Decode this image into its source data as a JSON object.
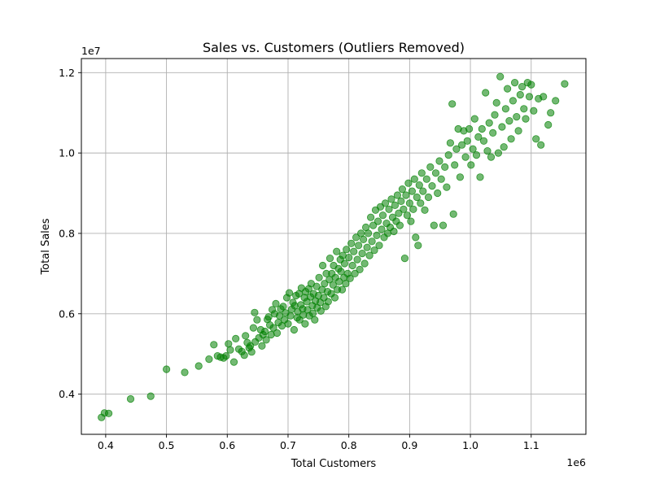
{
  "chart_data": {
    "type": "scatter",
    "title": "Sales vs. Customers (Outliers Removed)",
    "xlabel": "Total Customers",
    "ylabel": "Total Sales",
    "x_offset_label": "1e6",
    "y_offset_label": "1e7",
    "xlim": [
      0.36,
      1.19
    ],
    "ylim": [
      0.3,
      1.235
    ],
    "xticks": [
      0.4,
      0.5,
      0.6,
      0.7,
      0.8,
      0.9,
      1.0,
      1.1
    ],
    "xtick_labels": [
      "0.4",
      "0.5",
      "0.6",
      "0.7",
      "0.8",
      "0.9",
      "1.0",
      "1.1"
    ],
    "yticks": [
      0.4,
      0.6,
      0.8,
      1.0,
      1.2
    ],
    "ytick_labels": [
      "0.4",
      "0.6",
      "0.8",
      "1.0",
      "1.2"
    ],
    "grid": true,
    "marker_color": "#008000",
    "marker_alpha": 0.55,
    "series": [
      {
        "points": [
          [
            0.393,
            0.342
          ],
          [
            0.398,
            0.353
          ],
          [
            0.405,
            0.352
          ],
          [
            0.441,
            0.388
          ],
          [
            0.474,
            0.395
          ],
          [
            0.5,
            0.462
          ],
          [
            0.53,
            0.454
          ],
          [
            0.553,
            0.47
          ],
          [
            0.57,
            0.487
          ],
          [
            0.578,
            0.523
          ],
          [
            0.584,
            0.495
          ],
          [
            0.589,
            0.492
          ],
          [
            0.594,
            0.49
          ],
          [
            0.598,
            0.495
          ],
          [
            0.602,
            0.525
          ],
          [
            0.605,
            0.51
          ],
          [
            0.611,
            0.48
          ],
          [
            0.614,
            0.538
          ],
          [
            0.619,
            0.512
          ],
          [
            0.624,
            0.506
          ],
          [
            0.628,
            0.497
          ],
          [
            0.63,
            0.545
          ],
          [
            0.633,
            0.528
          ],
          [
            0.636,
            0.515
          ],
          [
            0.638,
            0.52
          ],
          [
            0.64,
            0.505
          ],
          [
            0.643,
            0.565
          ],
          [
            0.645,
            0.603
          ],
          [
            0.646,
            0.53
          ],
          [
            0.649,
            0.585
          ],
          [
            0.652,
            0.54
          ],
          [
            0.655,
            0.56
          ],
          [
            0.657,
            0.52
          ],
          [
            0.659,
            0.548
          ],
          [
            0.662,
            0.556
          ],
          [
            0.664,
            0.535
          ],
          [
            0.666,
            0.586
          ],
          [
            0.668,
            0.592
          ],
          [
            0.67,
            0.572
          ],
          [
            0.672,
            0.548
          ],
          [
            0.674,
            0.61
          ],
          [
            0.676,
            0.565
          ],
          [
            0.678,
            0.6
          ],
          [
            0.68,
            0.625
          ],
          [
            0.682,
            0.552
          ],
          [
            0.684,
            0.578
          ],
          [
            0.686,
            0.595
          ],
          [
            0.688,
            0.612
          ],
          [
            0.69,
            0.57
          ],
          [
            0.692,
            0.618
          ],
          [
            0.694,
            0.585
          ],
          [
            0.696,
            0.602
          ],
          [
            0.698,
            0.64
          ],
          [
            0.7,
            0.575
          ],
          [
            0.702,
            0.652
          ],
          [
            0.704,
            0.595
          ],
          [
            0.706,
            0.611
          ],
          [
            0.708,
            0.628
          ],
          [
            0.71,
            0.56
          ],
          [
            0.711,
            0.62
          ],
          [
            0.713,
            0.645
          ],
          [
            0.715,
            0.59
          ],
          [
            0.716,
            0.605
          ],
          [
            0.718,
            0.65
          ],
          [
            0.719,
            0.585
          ],
          [
            0.721,
            0.622
          ],
          [
            0.722,
            0.664
          ],
          [
            0.724,
            0.612
          ],
          [
            0.725,
            0.597
          ],
          [
            0.727,
            0.64
          ],
          [
            0.728,
            0.575
          ],
          [
            0.729,
            0.655
          ],
          [
            0.731,
            0.63
          ],
          [
            0.732,
            0.61
          ],
          [
            0.734,
            0.662
          ],
          [
            0.735,
            0.595
          ],
          [
            0.737,
            0.642
          ],
          [
            0.738,
            0.675
          ],
          [
            0.74,
            0.62
          ],
          [
            0.741,
            0.601
          ],
          [
            0.742,
            0.65
          ],
          [
            0.744,
            0.585
          ],
          [
            0.745,
            0.632
          ],
          [
            0.747,
            0.668
          ],
          [
            0.748,
            0.615
          ],
          [
            0.75,
            0.645
          ],
          [
            0.751,
            0.69
          ],
          [
            0.753,
            0.628
          ],
          [
            0.754,
            0.607
          ],
          [
            0.756,
            0.66
          ],
          [
            0.757,
            0.72
          ],
          [
            0.759,
            0.64
          ],
          [
            0.76,
            0.675
          ],
          [
            0.762,
            0.618
          ],
          [
            0.763,
            0.7
          ],
          [
            0.765,
            0.655
          ],
          [
            0.766,
            0.63
          ],
          [
            0.768,
            0.685
          ],
          [
            0.769,
            0.738
          ],
          [
            0.771,
            0.65
          ],
          [
            0.772,
            0.7
          ],
          [
            0.774,
            0.672
          ],
          [
            0.775,
            0.72
          ],
          [
            0.777,
            0.64
          ],
          [
            0.778,
            0.69
          ],
          [
            0.78,
            0.755
          ],
          [
            0.781,
            0.66
          ],
          [
            0.783,
            0.712
          ],
          [
            0.784,
            0.68
          ],
          [
            0.786,
            0.735
          ],
          [
            0.787,
            0.705
          ],
          [
            0.789,
            0.66
          ],
          [
            0.79,
            0.745
          ],
          [
            0.792,
            0.69
          ],
          [
            0.793,
            0.725
          ],
          [
            0.795,
            0.675
          ],
          [
            0.796,
            0.76
          ],
          [
            0.798,
            0.7
          ],
          [
            0.8,
            0.74
          ],
          [
            0.802,
            0.688
          ],
          [
            0.804,
            0.775
          ],
          [
            0.806,
            0.72
          ],
          [
            0.808,
            0.755
          ],
          [
            0.81,
            0.7
          ],
          [
            0.812,
            0.79
          ],
          [
            0.814,
            0.735
          ],
          [
            0.816,
            0.77
          ],
          [
            0.818,
            0.71
          ],
          [
            0.82,
            0.8
          ],
          [
            0.822,
            0.75
          ],
          [
            0.824,
            0.785
          ],
          [
            0.826,
            0.725
          ],
          [
            0.828,
            0.815
          ],
          [
            0.83,
            0.765
          ],
          [
            0.832,
            0.8
          ],
          [
            0.834,
            0.745
          ],
          [
            0.836,
            0.84
          ],
          [
            0.838,
            0.78
          ],
          [
            0.84,
            0.82
          ],
          [
            0.842,
            0.758
          ],
          [
            0.844,
            0.858
          ],
          [
            0.846,
            0.795
          ],
          [
            0.848,
            0.83
          ],
          [
            0.85,
            0.77
          ],
          [
            0.852,
            0.866
          ],
          [
            0.854,
            0.81
          ],
          [
            0.856,
            0.845
          ],
          [
            0.858,
            0.79
          ],
          [
            0.86,
            0.875
          ],
          [
            0.862,
            0.825
          ],
          [
            0.864,
            0.8
          ],
          [
            0.866,
            0.86
          ],
          [
            0.868,
            0.815
          ],
          [
            0.87,
            0.885
          ],
          [
            0.872,
            0.84
          ],
          [
            0.874,
            0.805
          ],
          [
            0.876,
            0.87
          ],
          [
            0.878,
            0.83
          ],
          [
            0.88,
            0.895
          ],
          [
            0.882,
            0.85
          ],
          [
            0.884,
            0.82
          ],
          [
            0.886,
            0.88
          ],
          [
            0.888,
            0.91
          ],
          [
            0.89,
            0.86
          ],
          [
            0.892,
            0.738
          ],
          [
            0.894,
            0.895
          ],
          [
            0.896,
            0.845
          ],
          [
            0.898,
            0.925
          ],
          [
            0.9,
            0.875
          ],
          [
            0.902,
            0.83
          ],
          [
            0.904,
            0.905
          ],
          [
            0.906,
            0.86
          ],
          [
            0.908,
            0.935
          ],
          [
            0.91,
            0.79
          ],
          [
            0.912,
            0.89
          ],
          [
            0.914,
            0.77
          ],
          [
            0.916,
            0.92
          ],
          [
            0.918,
            0.875
          ],
          [
            0.92,
            0.95
          ],
          [
            0.922,
            0.905
          ],
          [
            0.925,
            0.858
          ],
          [
            0.928,
            0.935
          ],
          [
            0.931,
            0.89
          ],
          [
            0.934,
            0.965
          ],
          [
            0.937,
            0.918
          ],
          [
            0.94,
            0.82
          ],
          [
            0.943,
            0.95
          ],
          [
            0.946,
            0.9
          ],
          [
            0.949,
            0.98
          ],
          [
            0.952,
            0.935
          ],
          [
            0.955,
            0.82
          ],
          [
            0.958,
            0.965
          ],
          [
            0.961,
            0.915
          ],
          [
            0.964,
            0.995
          ],
          [
            0.967,
            1.025
          ],
          [
            0.97,
            1.122
          ],
          [
            0.972,
            0.848
          ],
          [
            0.974,
            0.97
          ],
          [
            0.977,
            1.01
          ],
          [
            0.98,
            1.06
          ],
          [
            0.983,
            0.94
          ],
          [
            0.986,
            1.02
          ],
          [
            0.989,
            1.055
          ],
          [
            0.992,
            0.99
          ],
          [
            0.995,
            1.03
          ],
          [
            0.998,
            1.06
          ],
          [
            1.001,
            0.97
          ],
          [
            1.004,
            1.01
          ],
          [
            1.007,
            1.085
          ],
          [
            1.01,
            0.995
          ],
          [
            1.013,
            1.04
          ],
          [
            1.016,
            0.94
          ],
          [
            1.019,
            1.06
          ],
          [
            1.022,
            1.03
          ],
          [
            1.025,
            1.15
          ],
          [
            1.028,
            1.005
          ],
          [
            1.031,
            1.075
          ],
          [
            1.034,
            0.99
          ],
          [
            1.037,
            1.05
          ],
          [
            1.04,
            1.095
          ],
          [
            1.043,
            1.125
          ],
          [
            1.046,
            1.0
          ],
          [
            1.049,
            1.19
          ],
          [
            1.052,
            1.065
          ],
          [
            1.055,
            1.015
          ],
          [
            1.058,
            1.11
          ],
          [
            1.061,
            1.16
          ],
          [
            1.064,
            1.08
          ],
          [
            1.067,
            1.035
          ],
          [
            1.07,
            1.13
          ],
          [
            1.073,
            1.175
          ],
          [
            1.076,
            1.09
          ],
          [
            1.079,
            1.055
          ],
          [
            1.082,
            1.145
          ],
          [
            1.085,
            1.165
          ],
          [
            1.088,
            1.11
          ],
          [
            1.091,
            1.085
          ],
          [
            1.094,
            1.175
          ],
          [
            1.097,
            1.14
          ],
          [
            1.1,
            1.17
          ],
          [
            1.104,
            1.105
          ],
          [
            1.108,
            1.035
          ],
          [
            1.112,
            1.135
          ],
          [
            1.116,
            1.02
          ],
          [
            1.12,
            1.14
          ],
          [
            1.128,
            1.07
          ],
          [
            1.132,
            1.1
          ],
          [
            1.14,
            1.13
          ],
          [
            1.155,
            1.172
          ]
        ]
      }
    ]
  }
}
